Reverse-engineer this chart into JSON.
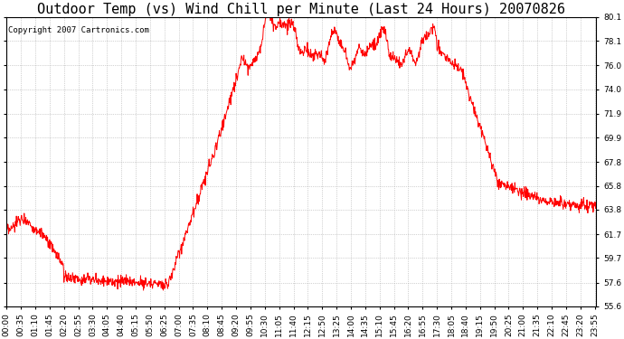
{
  "title": "Outdoor Temp (vs) Wind Chill per Minute (Last 24 Hours) 20070826",
  "copyright_text": "Copyright 2007 Cartronics.com",
  "line_color": "#ff0000",
  "background_color": "#ffffff",
  "plot_bg_color": "#ffffff",
  "grid_color": "#aaaaaa",
  "ylim": [
    55.6,
    80.1
  ],
  "yticks": [
    55.6,
    57.6,
    59.7,
    61.7,
    63.8,
    65.8,
    67.8,
    69.9,
    71.9,
    74.0,
    76.0,
    78.1,
    80.1
  ],
  "xlim": [
    0,
    1439
  ],
  "xtick_step": 35,
  "xtick_labels": [
    "00:00",
    "00:35",
    "01:10",
    "01:45",
    "02:20",
    "02:55",
    "03:30",
    "04:05",
    "04:40",
    "05:15",
    "05:50",
    "06:25",
    "07:00",
    "07:35",
    "08:10",
    "08:45",
    "09:20",
    "09:55",
    "10:30",
    "11:05",
    "11:40",
    "12:15",
    "12:50",
    "13:25",
    "14:00",
    "14:35",
    "15:10",
    "15:45",
    "16:20",
    "16:55",
    "17:30",
    "18:05",
    "18:40",
    "19:15",
    "19:50",
    "20:25",
    "21:00",
    "21:35",
    "22:10",
    "22:45",
    "23:20",
    "23:55"
  ],
  "title_fontsize": 11,
  "tick_fontsize": 6.5,
  "copyright_fontsize": 6.5,
  "figwidth": 6.9,
  "figheight": 3.75,
  "dpi": 100
}
